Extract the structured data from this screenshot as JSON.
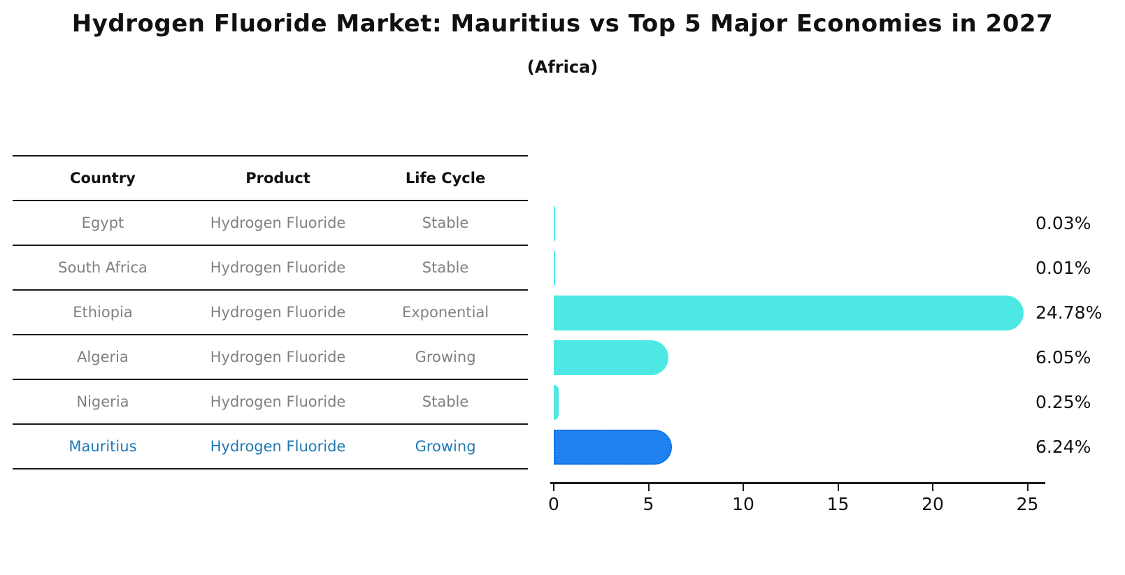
{
  "title": "Hydrogen Fluoride Market: Mauritius vs Top 5 Major Economies in 2027",
  "subtitle": "(Africa)",
  "table": {
    "headers": [
      "Country",
      "Product",
      "Life Cycle"
    ],
    "rows": [
      {
        "country": "Egypt",
        "product": "Hydrogen Fluoride",
        "life_cycle": "Stable",
        "highlight": false
      },
      {
        "country": "South Africa",
        "product": "Hydrogen Fluoride",
        "life_cycle": "Stable",
        "highlight": false
      },
      {
        "country": "Ethiopia",
        "product": "Hydrogen Fluoride",
        "life_cycle": "Exponential",
        "highlight": false
      },
      {
        "country": "Algeria",
        "product": "Hydrogen Fluoride",
        "life_cycle": "Growing",
        "highlight": false
      },
      {
        "country": "Nigeria",
        "product": "Hydrogen Fluoride",
        "life_cycle": "Stable",
        "highlight": false
      },
      {
        "country": "Mauritius",
        "product": "Hydrogen Fluoride",
        "life_cycle": "Growing",
        "highlight": true
      }
    ]
  },
  "chart_data": {
    "type": "bar",
    "orientation": "horizontal",
    "title": "Hydrogen Fluoride Market: Mauritius vs Top 5 Major Economies in 2027",
    "subtitle": "(Africa)",
    "categories": [
      "Egypt",
      "South Africa",
      "Ethiopia",
      "Algeria",
      "Nigeria",
      "Mauritius"
    ],
    "values": [
      0.03,
      0.01,
      24.78,
      6.05,
      0.25,
      6.24
    ],
    "value_labels": [
      "0.03%",
      "0.01%",
      "24.78%",
      "6.05%",
      "0.25%",
      "6.24%"
    ],
    "xlabel": "",
    "ylabel": "",
    "xlim": [
      0,
      26
    ],
    "xticks": [
      0,
      5,
      10,
      15,
      20,
      25
    ],
    "grid": false,
    "legend": false,
    "bar_color": "#4DE8E4",
    "highlight_index": 5,
    "highlight_bar_color": "#1E82F0",
    "highlight_border_color": "#0B62D8",
    "highlight_text_color": "#1F77B4",
    "muted_text_color": "#808080",
    "axis_color": "#1A1A1A"
  }
}
